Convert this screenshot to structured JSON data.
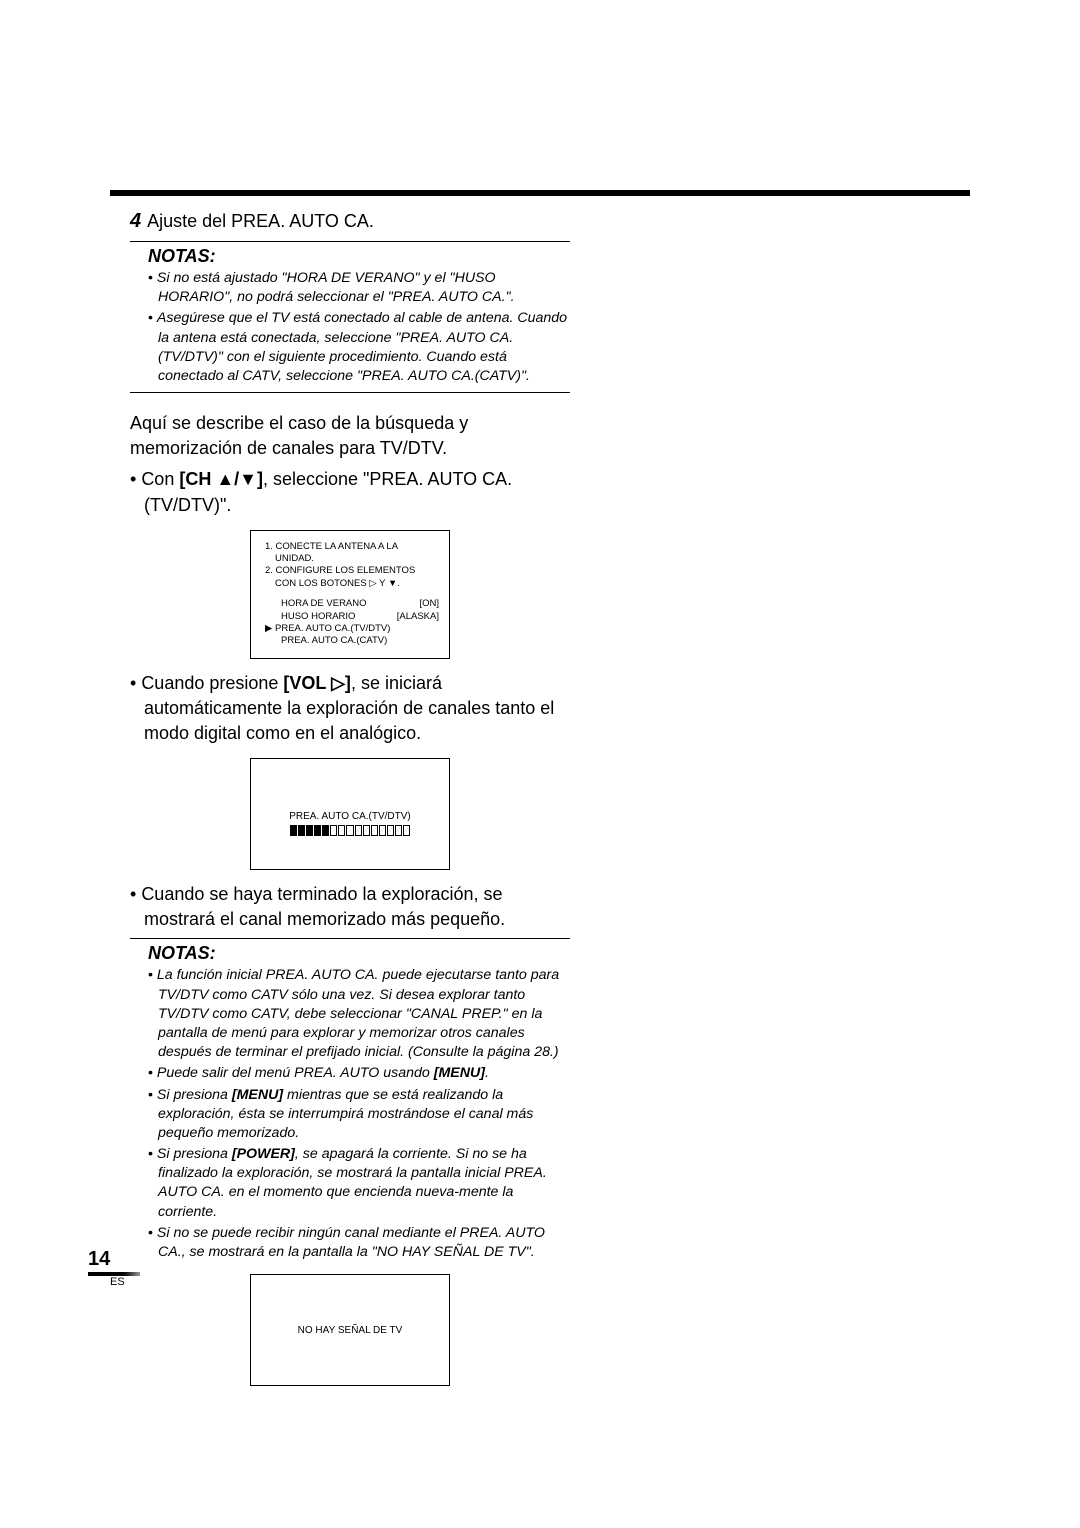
{
  "step": {
    "number": "4",
    "title": "Ajuste del PREA. AUTO CA."
  },
  "notas1": {
    "heading": "NOTAS:",
    "items": [
      "Si no está ajustado \"HORA DE VERANO\" y el \"HUSO HORARIO\", no podrá seleccionar el \"PREA. AUTO CA.\".",
      "Asegúrese que el TV está conectado al cable de antena. Cuando la antena está conectada, seleccione \"PREA. AUTO CA.(TV/DTV)\" con el siguiente procedimiento. Cuando está conectado al CATV, seleccione \"PREA. AUTO CA.(CATV)\"."
    ]
  },
  "body": {
    "p1": "Aquí se describe el caso de la búsqueda y memorización de canales para TV/DTV.",
    "bullet1_pre": "Con ",
    "bullet1_bold": "[CH ▲/▼]",
    "bullet1_post": ", seleccione \"PREA. AUTO CA.(TV/DTV)\".",
    "bullet2_pre": "Cuando presione ",
    "bullet2_bold": "[VOL ▷]",
    "bullet2_post": ", se iniciará automáticamente la exploración de canales tanto el modo digital como en el analógico.",
    "bullet3": "Cuando se haya terminado la exploración, se mostrará el canal memorizado más pequeño."
  },
  "osd1": {
    "line1": "1. CONECTE LA ANTENA A LA",
    "line1b": "UNIDAD.",
    "line2": "2. CONFIGURE LOS ELEMENTOS",
    "line2b": "CON LOS BOTONES ▷ Y ▼.",
    "row1_label": "HORA DE VERANO",
    "row1_value": "[ON]",
    "row2_label": "HUSO HORARIO",
    "row2_value": "[ALASKA]",
    "row3": "PREA. AUTO CA.(TV/DTV)",
    "row4": "PREA. AUTO CA.(CATV)"
  },
  "osd2": {
    "label": "PREA. AUTO CA.(TV/DTV)",
    "total_segments": 15,
    "filled_segments": 5
  },
  "osd3": {
    "text": "NO HAY SEÑAL DE TV"
  },
  "notas2": {
    "heading": "NOTAS:",
    "items": [
      {
        "pre": "La función inicial PREA. AUTO CA. puede ejecutarse tanto para TV/DTV como CATV sólo una vez. Si desea explorar tanto TV/DTV como CATV, debe seleccionar \"CANAL PREP.\" en la pantalla de menú para explorar y memorizar otros canales después de terminar el prefijado inicial. (Consulte la página 28.)"
      },
      {
        "pre": "Puede salir del menú PREA. AUTO usando ",
        "bold": "[MENU]",
        "post": "."
      },
      {
        "pre": "Si presiona ",
        "bold": "[MENU]",
        "post": " mientras que se está realizando la exploración, ésta se interrumpirá mostrándose el canal más pequeño memorizado."
      },
      {
        "pre": "Si presiona ",
        "bold": "[POWER]",
        "post": ", se apagará la corriente. Si no se ha finalizado la exploración, se mostrará la pantalla inicial PREA. AUTO CA. en el momento que encienda nueva-mente la corriente."
      },
      {
        "pre": "Si no se puede recibir ningún canal mediante el PREA. AUTO CA., se mostrará en la pantalla la \"NO HAY SEÑAL DE TV\"."
      }
    ]
  },
  "footer": {
    "page_number": "14",
    "lang": "ES"
  },
  "colors": {
    "text": "#000000",
    "background": "#ffffff"
  }
}
